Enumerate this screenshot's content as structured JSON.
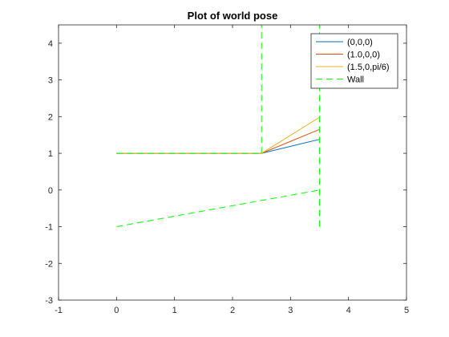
{
  "chart_data": {
    "type": "line",
    "title": "Plot of world pose",
    "xlabel": "",
    "ylabel": "",
    "xlim": [
      -1,
      5
    ],
    "ylim": [
      -3,
      4.5
    ],
    "xticks": [
      -1,
      0,
      1,
      2,
      3,
      4,
      5
    ],
    "yticks": [
      -3,
      -2,
      -1,
      0,
      1,
      2,
      3,
      4
    ],
    "xtick_labels": [
      "-1",
      "0",
      "1",
      "2",
      "3",
      "4",
      "5"
    ],
    "ytick_labels": [
      "-3",
      "-2",
      "-1",
      "0",
      "1",
      "2",
      "3",
      "4"
    ],
    "grid": false,
    "legend_position": "top-right",
    "series": [
      {
        "name": "(0,0,0)",
        "color": "#0072BD",
        "dash": "solid",
        "x": [
          0,
          2.5,
          3.5
        ],
        "y": [
          1,
          1,
          1.38
        ]
      },
      {
        "name": "(1.0,0,0)",
        "color": "#D95319",
        "dash": "solid",
        "x": [
          0,
          2.5,
          3.5
        ],
        "y": [
          1,
          1,
          1.65
        ]
      },
      {
        "name": "(1.5,0,pi/6)",
        "color": "#EDB120",
        "dash": "solid",
        "x": [
          0,
          2.5,
          3.5
        ],
        "y": [
          1,
          1,
          1.98
        ]
      },
      {
        "name": "Wall",
        "color": "#00FF00",
        "dash": "dashed",
        "segments": [
          {
            "x": [
              0,
              2.5
            ],
            "y": [
              1,
              1
            ]
          },
          {
            "x": [
              2.5,
              2.5
            ],
            "y": [
              1,
              4.5
            ]
          },
          {
            "x": [
              0,
              3.5
            ],
            "y": [
              -1,
              0
            ]
          },
          {
            "x": [
              3.5,
              3.5
            ],
            "y": [
              -1,
              4.5
            ]
          }
        ]
      }
    ]
  }
}
